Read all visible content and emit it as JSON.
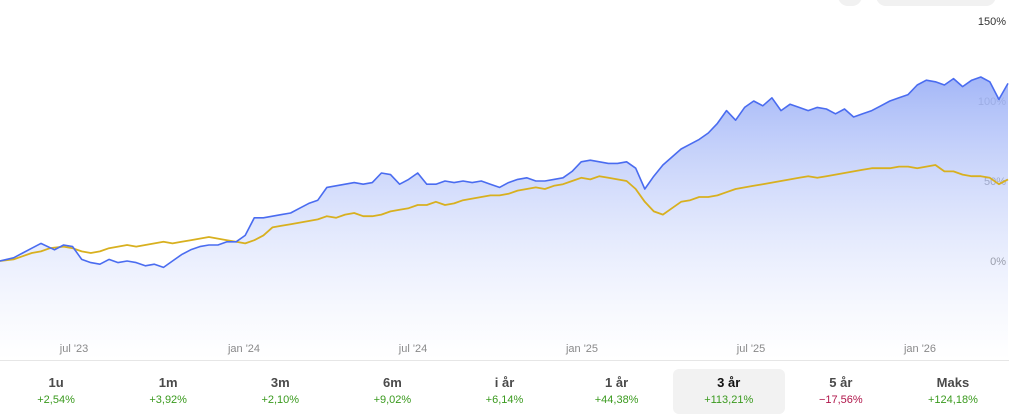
{
  "colors": {
    "main_line": "#4a6cf0",
    "area_top": "#9fb3f7",
    "area_bottom": "#ffffff",
    "benchmark_line": "#d8b01f",
    "positive": "#3a9a1e",
    "negative": "#b0154a"
  },
  "chart_data": {
    "type": "line",
    "title": "",
    "xlabel": "",
    "ylabel": "",
    "x_ticks": [
      "jul '23",
      "jan '24",
      "jul '24",
      "jan '25",
      "jul '25",
      "jan '26"
    ],
    "y_ticks": [
      "0%",
      "50%",
      "100%",
      "150%"
    ],
    "ylim": [
      -40,
      150
    ],
    "y_axis_position": "right",
    "grid": false,
    "legend": "none",
    "series": [
      {
        "style": "line-with-area",
        "points": [
          [
            0,
            0
          ],
          [
            3,
            2
          ],
          [
            5,
            5
          ],
          [
            7,
            8
          ],
          [
            9,
            11
          ],
          [
            12,
            7
          ],
          [
            14,
            10
          ],
          [
            16,
            9
          ],
          [
            18,
            1
          ],
          [
            20,
            -1
          ],
          [
            22,
            -2
          ],
          [
            24,
            1
          ],
          [
            26,
            -1
          ],
          [
            28,
            0
          ],
          [
            30,
            -1
          ],
          [
            32,
            -3
          ],
          [
            34,
            -2
          ],
          [
            36,
            -4
          ],
          [
            38,
            0
          ],
          [
            40,
            4
          ],
          [
            42,
            7
          ],
          [
            44,
            9
          ],
          [
            46,
            10
          ],
          [
            48,
            10
          ],
          [
            50,
            12
          ],
          [
            52,
            12
          ],
          [
            54,
            16
          ],
          [
            56,
            27
          ],
          [
            58,
            27
          ],
          [
            60,
            28
          ],
          [
            62,
            29
          ],
          [
            64,
            30
          ],
          [
            66,
            33
          ],
          [
            68,
            36
          ],
          [
            70,
            38
          ],
          [
            72,
            46
          ],
          [
            74,
            47
          ],
          [
            76,
            48
          ],
          [
            78,
            49
          ],
          [
            80,
            48
          ],
          [
            82,
            49
          ],
          [
            84,
            55
          ],
          [
            86,
            54
          ],
          [
            88,
            48
          ],
          [
            90,
            51
          ],
          [
            92,
            55
          ],
          [
            94,
            48
          ],
          [
            96,
            48
          ],
          [
            98,
            50
          ],
          [
            100,
            49
          ],
          [
            102,
            50
          ],
          [
            104,
            49
          ],
          [
            106,
            50
          ],
          [
            108,
            48
          ],
          [
            110,
            46
          ],
          [
            112,
            49
          ],
          [
            114,
            51
          ],
          [
            116,
            52
          ],
          [
            118,
            50
          ],
          [
            120,
            50
          ],
          [
            122,
            51
          ],
          [
            124,
            52
          ],
          [
            126,
            56
          ],
          [
            128,
            62
          ],
          [
            130,
            63
          ],
          [
            132,
            62
          ],
          [
            134,
            61
          ],
          [
            136,
            61
          ],
          [
            138,
            62
          ],
          [
            140,
            58
          ],
          [
            142,
            45
          ],
          [
            144,
            53
          ],
          [
            146,
            60
          ],
          [
            148,
            65
          ],
          [
            150,
            70
          ],
          [
            152,
            73
          ],
          [
            154,
            76
          ],
          [
            156,
            80
          ],
          [
            158,
            86
          ],
          [
            160,
            94
          ],
          [
            162,
            88
          ],
          [
            164,
            96
          ],
          [
            166,
            100
          ],
          [
            168,
            97
          ],
          [
            170,
            102
          ],
          [
            172,
            94
          ],
          [
            174,
            98
          ],
          [
            176,
            96
          ],
          [
            178,
            94
          ],
          [
            180,
            96
          ],
          [
            182,
            95
          ],
          [
            184,
            92
          ],
          [
            186,
            95
          ],
          [
            188,
            90
          ],
          [
            190,
            92
          ],
          [
            192,
            94
          ],
          [
            194,
            97
          ],
          [
            196,
            100
          ],
          [
            198,
            102
          ],
          [
            200,
            104
          ],
          [
            202,
            110
          ],
          [
            204,
            113
          ],
          [
            206,
            112
          ],
          [
            208,
            110
          ],
          [
            210,
            114
          ],
          [
            212,
            109
          ],
          [
            214,
            113
          ],
          [
            216,
            115
          ],
          [
            218,
            112
          ],
          [
            220,
            101
          ],
          [
            222,
            111
          ]
        ]
      },
      {
        "style": "line",
        "points": [
          [
            0,
            0
          ],
          [
            3,
            1
          ],
          [
            5,
            3
          ],
          [
            7,
            5
          ],
          [
            9,
            6
          ],
          [
            11,
            8
          ],
          [
            14,
            9
          ],
          [
            16,
            8
          ],
          [
            18,
            6
          ],
          [
            20,
            5
          ],
          [
            22,
            6
          ],
          [
            24,
            8
          ],
          [
            26,
            9
          ],
          [
            28,
            10
          ],
          [
            30,
            9
          ],
          [
            32,
            10
          ],
          [
            34,
            11
          ],
          [
            36,
            12
          ],
          [
            38,
            11
          ],
          [
            40,
            12
          ],
          [
            42,
            13
          ],
          [
            44,
            14
          ],
          [
            46,
            15
          ],
          [
            48,
            14
          ],
          [
            50,
            13
          ],
          [
            52,
            12
          ],
          [
            54,
            11
          ],
          [
            56,
            13
          ],
          [
            58,
            16
          ],
          [
            60,
            21
          ],
          [
            62,
            22
          ],
          [
            64,
            23
          ],
          [
            66,
            24
          ],
          [
            68,
            25
          ],
          [
            70,
            26
          ],
          [
            72,
            28
          ],
          [
            74,
            27
          ],
          [
            76,
            29
          ],
          [
            78,
            30
          ],
          [
            80,
            28
          ],
          [
            82,
            28
          ],
          [
            84,
            29
          ],
          [
            86,
            31
          ],
          [
            88,
            32
          ],
          [
            90,
            33
          ],
          [
            92,
            35
          ],
          [
            94,
            35
          ],
          [
            96,
            37
          ],
          [
            98,
            35
          ],
          [
            100,
            36
          ],
          [
            102,
            38
          ],
          [
            104,
            39
          ],
          [
            106,
            40
          ],
          [
            108,
            41
          ],
          [
            110,
            41
          ],
          [
            112,
            42
          ],
          [
            114,
            44
          ],
          [
            116,
            45
          ],
          [
            118,
            46
          ],
          [
            120,
            45
          ],
          [
            122,
            47
          ],
          [
            124,
            48
          ],
          [
            126,
            50
          ],
          [
            128,
            52
          ],
          [
            130,
            51
          ],
          [
            132,
            53
          ],
          [
            134,
            52
          ],
          [
            136,
            51
          ],
          [
            138,
            50
          ],
          [
            140,
            45
          ],
          [
            142,
            37
          ],
          [
            144,
            31
          ],
          [
            146,
            29
          ],
          [
            148,
            33
          ],
          [
            150,
            37
          ],
          [
            152,
            38
          ],
          [
            154,
            40
          ],
          [
            156,
            40
          ],
          [
            158,
            41
          ],
          [
            160,
            43
          ],
          [
            162,
            45
          ],
          [
            164,
            46
          ],
          [
            166,
            47
          ],
          [
            168,
            48
          ],
          [
            170,
            49
          ],
          [
            172,
            50
          ],
          [
            174,
            51
          ],
          [
            176,
            52
          ],
          [
            178,
            53
          ],
          [
            180,
            52
          ],
          [
            182,
            53
          ],
          [
            184,
            54
          ],
          [
            186,
            55
          ],
          [
            188,
            56
          ],
          [
            190,
            57
          ],
          [
            192,
            58
          ],
          [
            194,
            58
          ],
          [
            196,
            58
          ],
          [
            198,
            59
          ],
          [
            200,
            59
          ],
          [
            202,
            58
          ],
          [
            204,
            59
          ],
          [
            206,
            60
          ],
          [
            208,
            56
          ],
          [
            210,
            56
          ],
          [
            212,
            54
          ],
          [
            214,
            53
          ],
          [
            216,
            53
          ],
          [
            218,
            52
          ],
          [
            220,
            48
          ],
          [
            222,
            51
          ]
        ]
      }
    ]
  },
  "periods": [
    {
      "label": "1u",
      "change": "+2,54%",
      "trend": "positive",
      "selected": false
    },
    {
      "label": "1m",
      "change": "+3,92%",
      "trend": "positive",
      "selected": false
    },
    {
      "label": "3m",
      "change": "+2,10%",
      "trend": "positive",
      "selected": false
    },
    {
      "label": "6m",
      "change": "+9,02%",
      "trend": "positive",
      "selected": false
    },
    {
      "label": "i år",
      "change": "+6,14%",
      "trend": "positive",
      "selected": false
    },
    {
      "label": "1 år",
      "change": "+44,38%",
      "trend": "positive",
      "selected": false
    },
    {
      "label": "3 år",
      "change": "+113,21%",
      "trend": "positive",
      "selected": true
    },
    {
      "label": "5 år",
      "change": "−17,56%",
      "trend": "negative",
      "selected": false
    },
    {
      "label": "Maks",
      "change": "+124,18%",
      "trend": "positive",
      "selected": false
    }
  ]
}
